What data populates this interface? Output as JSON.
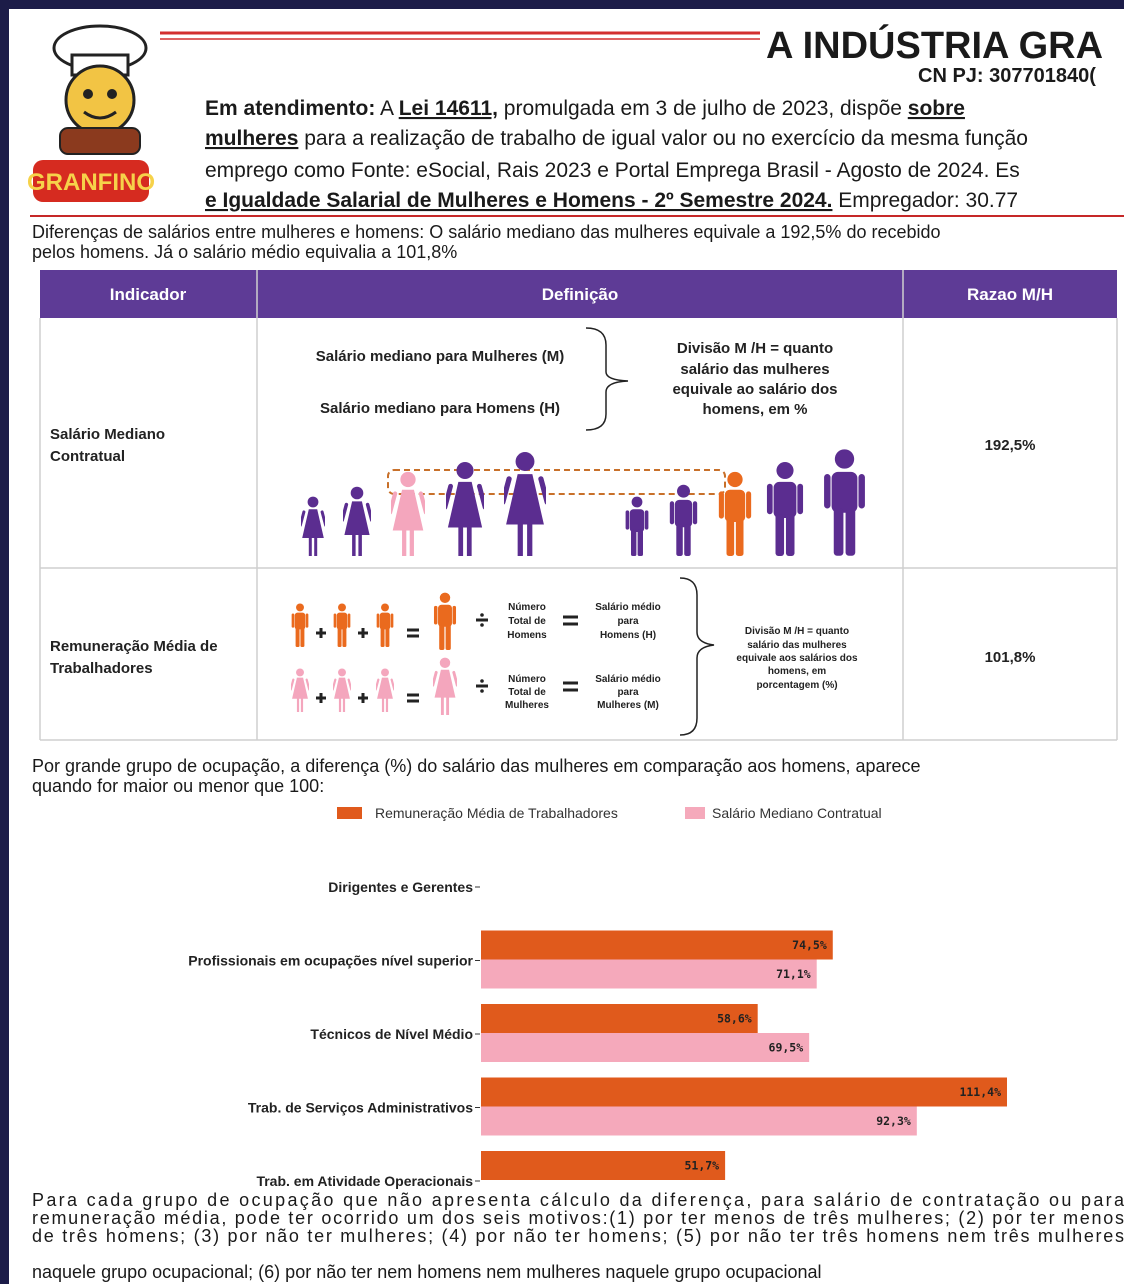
{
  "header": {
    "logo_text": "GRANFINO",
    "title": "A INDÚSTRIA GRA",
    "cnpj": "CN PJ: 307701840(",
    "lines": [
      [
        "Em atendimento:",
        " A ",
        "Lei 14611,",
        " promulgada em 3 de julho de 2023, dispõe ",
        "sobre"
      ],
      [
        "mulheres",
        " para a realização de trabalho de igual valor ou no exercício da mesma função"
      ],
      [
        "emprego  como Fonte: eSocial, Rais 2023 e Portal Emprega Brasil - Agosto de 2024. Es"
      ],
      [
        "e Igualdade Salarial de Mulheres e Homens - 2º Semestre 2024.",
        " Empregador: 30.77"
      ]
    ]
  },
  "intro": [
    "Diferenças de salários entre mulheres e homens: O salário mediano das mulheres equivale a 192,5% do recebido",
    "pelos homens. Já o salário médio equivalia a 101,8%"
  ],
  "table": {
    "headers": [
      "Indicador",
      "Definição",
      "Razao M/H"
    ],
    "rows": [
      {
        "indicator": [
          "Salário Mediano",
          "Contratual"
        ],
        "definition": {
          "women": "Salário mediano para Mulheres (M)",
          "men": "Salário mediano para Homens (H)",
          "note": [
            "Divisão M /H = quanto",
            "salário das mulheres",
            "equivale ao salário dos",
            "homens, em %"
          ]
        },
        "ratio": "192,5%"
      },
      {
        "indicator": [
          "Remuneração Média de",
          "Trabalhadores"
        ],
        "definition": {
          "men_count": [
            "Número",
            "Total de",
            "Homens"
          ],
          "men_avg": [
            "Salário médio",
            "para",
            "Homens (H)"
          ],
          "women_count": [
            "Número",
            "Total de",
            "Mulheres"
          ],
          "women_avg": [
            "Salário médio",
            "para",
            "Mulheres (M)"
          ],
          "note": [
            "Divisão M /H = quanto",
            "salário das mulheres",
            "equivale aos salários dos",
            "homens, em",
            "porcentagem (%)"
          ]
        },
        "ratio": "101,8%"
      }
    ]
  },
  "chart_intro": [
    "Por grande grupo de ocupação, a diferença (%) do salário das mulheres em comparação aos homens, aparece",
    "quando for maior ou menor que 100:"
  ],
  "chart_data": {
    "type": "bar",
    "orientation": "horizontal",
    "categories": [
      "Dirigentes e Gerentes",
      "Profissionais em ocupações nível superior",
      "Técnicos de Nível Médio",
      "Trab. de Serviços Administrativos",
      "Trab. em Atividade Operacionais"
    ],
    "series": [
      {
        "name": "Remuneração Média de Trabalhadores",
        "color": "#e05a1c",
        "values": [
          null,
          74.5,
          58.6,
          111.4,
          51.7
        ],
        "value_labels": [
          null,
          "74,5%",
          "58,6%",
          "111,4%",
          "51,7%"
        ]
      },
      {
        "name": "Salário Mediano Contratual",
        "color": "#f5a9bb",
        "values": [
          null,
          71.1,
          69.5,
          92.3,
          null
        ],
        "value_labels": [
          null,
          "71,1%",
          "69,5%",
          "92,3%",
          null
        ]
      }
    ]
  },
  "footer": [
    "Para cada grupo de ocupação que não apresenta cálculo da diferença, para salário de contratação ou para",
    "remuneração média, pode ter ocorrido um dos seis motivos:(1) por ter menos de três mulheres; (2) por ter menos",
    "de três homens; (3) por não ter mulheres; (4) por não ter homens; (5) por não ter três homens nem três mulheres",
    "naquele grupo ocupacional; (6) por não ter nem homens nem mulheres naquele grupo ocupacional"
  ]
}
